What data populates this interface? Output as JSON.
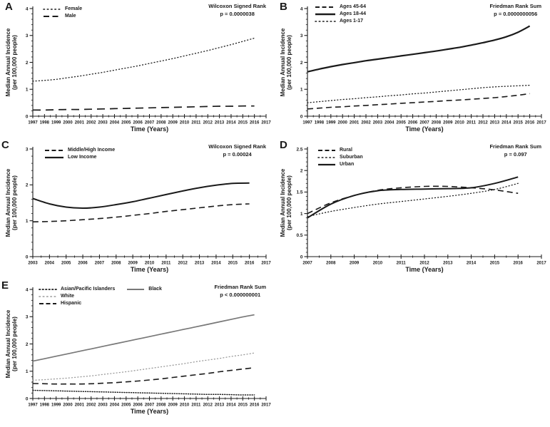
{
  "figure": {
    "background": "#ffffff",
    "ink": "#1a1a1a",
    "gray_line": "#787878",
    "light_gray_line": "#9a9a9a"
  },
  "chart_data": [
    {
      "panel": "A",
      "type": "line",
      "stat_lines": [
        "Wilcoxon Signed Rank",
        "p = 0.0000038"
      ],
      "xlabel": "Time (Years)",
      "ylabel_lines": [
        "Median Annual Incidence",
        "(per 100,000 people)"
      ],
      "xlim": [
        1997,
        2017
      ],
      "ylim": [
        0,
        4
      ],
      "yticks": [
        0,
        1,
        2,
        3,
        4
      ],
      "y_minor_step": 0.2,
      "xticks": [
        1997,
        1998,
        1999,
        2000,
        2001,
        2002,
        2003,
        2004,
        2005,
        2006,
        2007,
        2008,
        2009,
        2010,
        2011,
        2012,
        2013,
        2014,
        2015,
        2016,
        2017
      ],
      "x": [
        1997,
        1998,
        1999,
        2000,
        2001,
        2002,
        2003,
        2004,
        2005,
        2006,
        2007,
        2008,
        2009,
        2010,
        2011,
        2012,
        2013,
        2014,
        2015,
        2016
      ],
      "series": [
        {
          "name": "Female",
          "style": "dotted",
          "color": "#1a1a1a",
          "values": [
            1.3,
            1.33,
            1.37,
            1.43,
            1.49,
            1.56,
            1.63,
            1.71,
            1.79,
            1.87,
            1.96,
            2.05,
            2.14,
            2.24,
            2.34,
            2.44,
            2.55,
            2.66,
            2.78,
            2.9
          ]
        },
        {
          "name": "Male",
          "style": "long-dashed",
          "color": "#1a1a1a",
          "values": [
            0.23,
            0.23,
            0.24,
            0.25,
            0.25,
            0.26,
            0.27,
            0.28,
            0.29,
            0.3,
            0.31,
            0.32,
            0.33,
            0.34,
            0.35,
            0.36,
            0.37,
            0.37,
            0.38,
            0.38
          ]
        }
      ]
    },
    {
      "panel": "B",
      "type": "line",
      "stat_lines": [
        "Friedman Rank Sum",
        "p = 0.0000000056"
      ],
      "xlabel": "Time (Years)",
      "ylabel_lines": [
        "Median Annual Incidence",
        "(per 100,000 people)"
      ],
      "xlim": [
        1997,
        2017
      ],
      "ylim": [
        0,
        4
      ],
      "yticks": [
        0,
        1,
        2,
        3,
        4
      ],
      "y_minor_step": 0.2,
      "xticks": [
        1997,
        1998,
        1999,
        2000,
        2001,
        2002,
        2003,
        2004,
        2005,
        2006,
        2007,
        2008,
        2009,
        2010,
        2011,
        2012,
        2013,
        2014,
        2015,
        2016,
        2017
      ],
      "x": [
        1997,
        1998,
        1999,
        2000,
        2001,
        2002,
        2003,
        2004,
        2005,
        2006,
        2007,
        2008,
        2009,
        2010,
        2011,
        2012,
        2013,
        2014,
        2015,
        2016
      ],
      "series": [
        {
          "name": "Ages 45-64",
          "style": "dashed",
          "color": "#1a1a1a",
          "values": [
            0.27,
            0.3,
            0.33,
            0.35,
            0.38,
            0.4,
            0.43,
            0.45,
            0.48,
            0.5,
            0.53,
            0.55,
            0.58,
            0.6,
            0.63,
            0.66,
            0.69,
            0.73,
            0.78,
            0.84
          ]
        },
        {
          "name": "Ages 18-44",
          "style": "solid",
          "color": "#1a1a1a",
          "width": 2.2,
          "values": [
            1.65,
            1.75,
            1.84,
            1.92,
            1.99,
            2.06,
            2.12,
            2.18,
            2.24,
            2.3,
            2.36,
            2.42,
            2.49,
            2.56,
            2.64,
            2.73,
            2.83,
            2.95,
            3.12,
            3.35
          ]
        },
        {
          "name": "Ages 1-17",
          "style": "dotted",
          "color": "#1a1a1a",
          "values": [
            0.5,
            0.54,
            0.58,
            0.62,
            0.65,
            0.69,
            0.72,
            0.76,
            0.79,
            0.83,
            0.86,
            0.9,
            0.94,
            0.98,
            1.02,
            1.06,
            1.09,
            1.11,
            1.13,
            1.15
          ]
        }
      ]
    },
    {
      "panel": "C",
      "type": "line",
      "stat_lines": [
        "Wilcoxon Signed Rank",
        "p = 0.00024"
      ],
      "xlabel": "Time (Years)",
      "ylabel_lines": [
        "Median Annual Incidence",
        "(per 100,000 people)"
      ],
      "xlim": [
        2003,
        2017
      ],
      "ylim": [
        0,
        3
      ],
      "yticks": [
        0,
        1,
        2,
        3
      ],
      "y_minor_step": 0.2,
      "xticks": [
        2003,
        2004,
        2005,
        2006,
        2007,
        2008,
        2009,
        2010,
        2011,
        2012,
        2013,
        2014,
        2015,
        2016,
        2017
      ],
      "x": [
        2003,
        2004,
        2005,
        2006,
        2007,
        2008,
        2009,
        2010,
        2011,
        2012,
        2013,
        2014,
        2015,
        2016
      ],
      "series": [
        {
          "name": "Middle/High Income",
          "style": "dashed",
          "color": "#1a1a1a",
          "values": [
            0.97,
            0.98,
            1.0,
            1.03,
            1.06,
            1.1,
            1.15,
            1.2,
            1.26,
            1.31,
            1.36,
            1.41,
            1.45,
            1.47
          ]
        },
        {
          "name": "Low Income",
          "style": "solid",
          "color": "#1a1a1a",
          "width": 2.0,
          "values": [
            1.62,
            1.47,
            1.38,
            1.35,
            1.38,
            1.45,
            1.53,
            1.63,
            1.73,
            1.83,
            1.92,
            1.99,
            2.04,
            2.05
          ]
        }
      ]
    },
    {
      "panel": "D",
      "type": "line",
      "stat_lines": [
        "Friedman Rank Sum",
        "p = 0.097"
      ],
      "xlabel": "Time (Years)",
      "ylabel_lines": [
        "Median Annual Incidence",
        "(per 100,000 people)"
      ],
      "xlim": [
        2007,
        2017
      ],
      "ylim": [
        0,
        2.5
      ],
      "yticks": [
        0,
        0.5,
        1,
        1.5,
        2,
        2.5
      ],
      "y_minor_step": 0.1,
      "xticks": [
        2007,
        2008,
        2009,
        2010,
        2011,
        2012,
        2013,
        2014,
        2015,
        2016,
        2017
      ],
      "x": [
        2007,
        2008,
        2009,
        2010,
        2011,
        2012,
        2013,
        2014,
        2015,
        2016
      ],
      "series": [
        {
          "name": "Rural",
          "style": "dashed",
          "color": "#1a1a1a",
          "values": [
            1.0,
            1.25,
            1.42,
            1.54,
            1.6,
            1.63,
            1.63,
            1.6,
            1.55,
            1.47
          ]
        },
        {
          "name": "Suburban",
          "style": "dotted",
          "color": "#1a1a1a",
          "values": [
            0.93,
            1.05,
            1.14,
            1.22,
            1.28,
            1.34,
            1.4,
            1.47,
            1.56,
            1.7
          ]
        },
        {
          "name": "Urban",
          "style": "solid",
          "color": "#1a1a1a",
          "width": 2.0,
          "values": [
            0.9,
            1.22,
            1.42,
            1.53,
            1.56,
            1.57,
            1.58,
            1.6,
            1.7,
            1.85
          ]
        }
      ]
    },
    {
      "panel": "E",
      "type": "line",
      "stat_lines": [
        "Friedman Rank Sum",
        "p < 0.000000001"
      ],
      "xlabel": "Time (Years)",
      "ylabel_lines": [
        "Median Annual Incidence",
        "(per 100,000 people)"
      ],
      "xlim": [
        1997,
        2017
      ],
      "ylim": [
        0,
        4
      ],
      "yticks": [
        0,
        1,
        2,
        3,
        4
      ],
      "y_minor_step": 0.2,
      "xticks": [
        1997,
        1998,
        1999,
        2000,
        2001,
        2002,
        2003,
        2004,
        2005,
        2006,
        2007,
        2008,
        2009,
        2010,
        2011,
        2012,
        2013,
        2014,
        2015,
        2016,
        2017
      ],
      "x": [
        1997,
        1998,
        1999,
        2000,
        2001,
        2002,
        2003,
        2004,
        2005,
        2006,
        2007,
        2008,
        2009,
        2010,
        2011,
        2012,
        2013,
        2014,
        2015,
        2016
      ],
      "series": [
        {
          "name": "Asian/Pacific Islanders",
          "style": "dense-dotted",
          "color": "#1a1a1a",
          "values": [
            0.3,
            0.29,
            0.28,
            0.27,
            0.26,
            0.25,
            0.24,
            0.23,
            0.22,
            0.21,
            0.2,
            0.19,
            0.18,
            0.17,
            0.16,
            0.15,
            0.15,
            0.14,
            0.13,
            0.13
          ]
        },
        {
          "name": "White",
          "style": "dotted",
          "color": "#9a9a9a",
          "values": [
            0.67,
            0.69,
            0.72,
            0.75,
            0.79,
            0.83,
            0.88,
            0.93,
            0.98,
            1.04,
            1.1,
            1.16,
            1.22,
            1.28,
            1.35,
            1.41,
            1.47,
            1.54,
            1.6,
            1.67
          ]
        },
        {
          "name": "Hispanic",
          "style": "dashed",
          "color": "#1a1a1a",
          "values": [
            0.55,
            0.54,
            0.53,
            0.53,
            0.53,
            0.54,
            0.56,
            0.58,
            0.61,
            0.64,
            0.68,
            0.72,
            0.77,
            0.82,
            0.87,
            0.92,
            0.98,
            1.03,
            1.08,
            1.13
          ]
        },
        {
          "name": "Black",
          "style": "solid",
          "color": "#787878",
          "width": 1.7,
          "values": [
            1.37,
            1.46,
            1.55,
            1.64,
            1.73,
            1.82,
            1.91,
            2.0,
            2.09,
            2.18,
            2.27,
            2.36,
            2.45,
            2.54,
            2.63,
            2.72,
            2.81,
            2.9,
            2.99,
            3.07
          ]
        }
      ]
    }
  ]
}
